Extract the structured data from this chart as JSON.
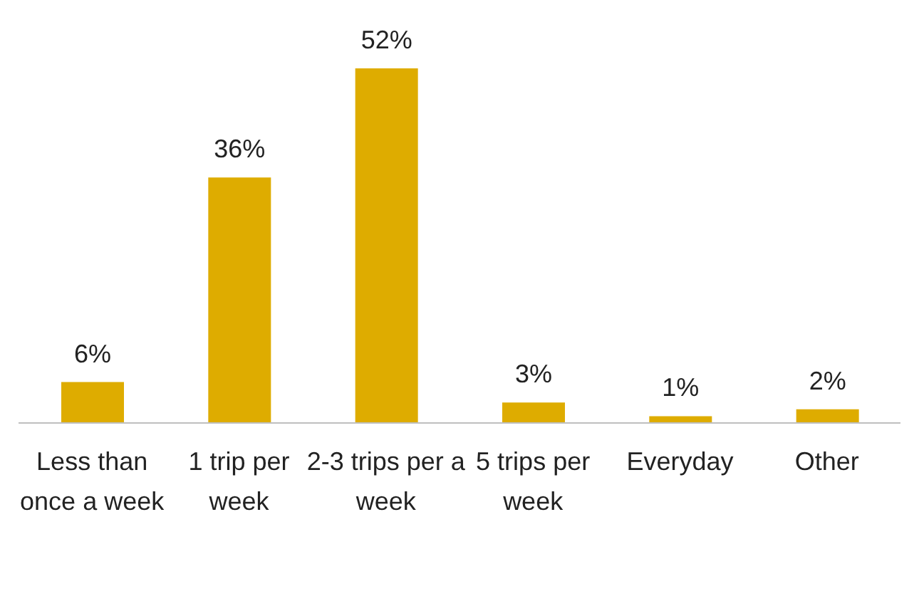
{
  "chart_data": {
    "type": "bar",
    "categories": [
      "Less than once a week",
      "1 trip per week",
      "2-3 trips per a week",
      "5 trips per week",
      "Everyday",
      "Other"
    ],
    "values": [
      6,
      36,
      52,
      3,
      1,
      2
    ],
    "value_labels": [
      "6%",
      "36%",
      "52%",
      "3%",
      "1%",
      "2%"
    ],
    "color": "#deac00",
    "grid": false,
    "legend": false
  }
}
